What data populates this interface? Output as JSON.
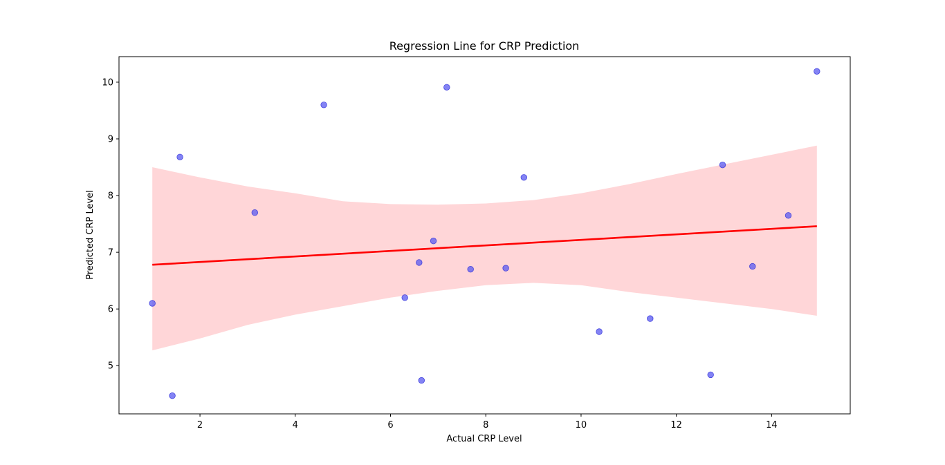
{
  "chart_data": {
    "type": "scatter",
    "title": "Regression Line for CRP Prediction",
    "xlabel": "Actual CRP Level",
    "ylabel": "Predicted CRP Level",
    "xlim": [
      0.3,
      15.65
    ],
    "ylim": [
      4.15,
      10.45
    ],
    "xticks": [
      2,
      4,
      6,
      8,
      10,
      12,
      14
    ],
    "yticks": [
      5,
      6,
      7,
      8,
      9,
      10
    ],
    "grid": false,
    "points": [
      {
        "x": 1.0,
        "y": 6.1
      },
      {
        "x": 1.42,
        "y": 4.47
      },
      {
        "x": 1.58,
        "y": 8.68
      },
      {
        "x": 3.15,
        "y": 7.7
      },
      {
        "x": 4.6,
        "y": 9.6
      },
      {
        "x": 6.3,
        "y": 6.2
      },
      {
        "x": 6.6,
        "y": 6.82
      },
      {
        "x": 6.65,
        "y": 4.74
      },
      {
        "x": 6.9,
        "y": 7.2
      },
      {
        "x": 7.18,
        "y": 9.91
      },
      {
        "x": 7.68,
        "y": 6.7
      },
      {
        "x": 8.42,
        "y": 6.72
      },
      {
        "x": 8.8,
        "y": 8.32
      },
      {
        "x": 10.38,
        "y": 5.6
      },
      {
        "x": 11.45,
        "y": 5.83
      },
      {
        "x": 12.72,
        "y": 4.84
      },
      {
        "x": 12.97,
        "y": 8.54
      },
      {
        "x": 13.6,
        "y": 6.75
      },
      {
        "x": 14.35,
        "y": 7.65
      },
      {
        "x": 14.95,
        "y": 10.19
      }
    ],
    "regression_line": {
      "x": [
        1.0,
        14.95
      ],
      "y": [
        6.78,
        7.46
      ]
    },
    "confidence_band": {
      "x": [
        1.0,
        2.0,
        3.0,
        4.0,
        5.0,
        6.0,
        7.0,
        8.0,
        9.0,
        10.0,
        11.0,
        12.0,
        13.0,
        14.0,
        14.95
      ],
      "upper": [
        8.5,
        8.32,
        8.16,
        8.04,
        7.9,
        7.85,
        7.84,
        7.86,
        7.92,
        8.04,
        8.2,
        8.38,
        8.55,
        8.72,
        8.88
      ],
      "lower": [
        5.27,
        5.48,
        5.72,
        5.9,
        6.05,
        6.2,
        6.32,
        6.42,
        6.46,
        6.42,
        6.3,
        6.2,
        6.1,
        6.0,
        5.88
      ]
    },
    "colors": {
      "points": "#5a5af0",
      "point_edge": "#2a2ad8",
      "line": "#ff0000",
      "band": "#ffd6d8"
    }
  }
}
